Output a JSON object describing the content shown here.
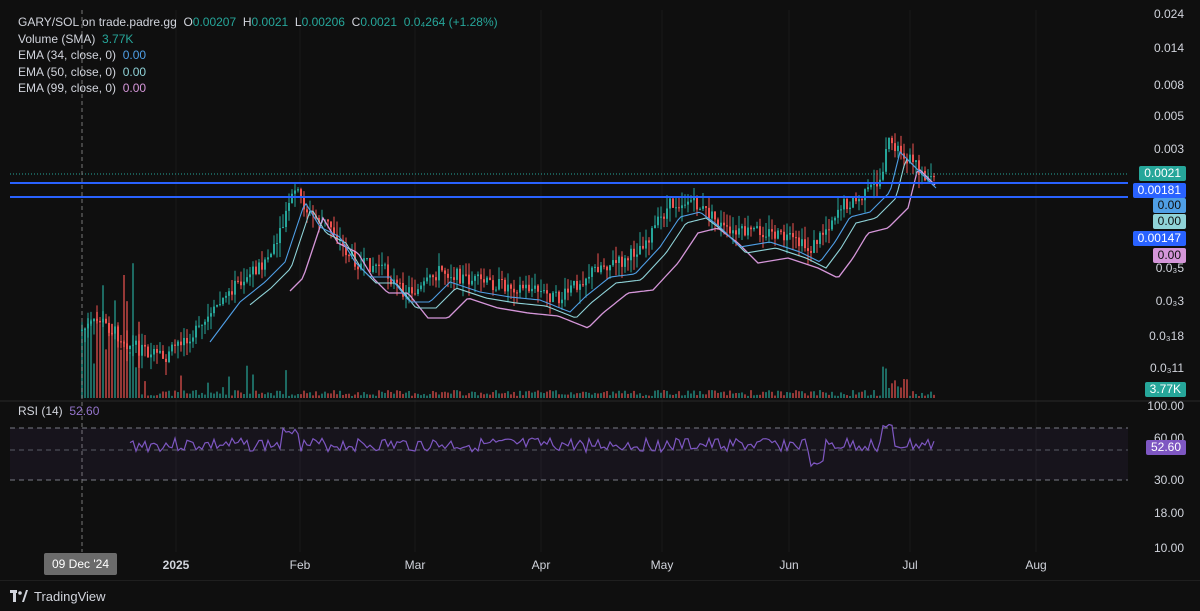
{
  "legend": {
    "symbol": "GARY/SOL on trade.padre.gg",
    "o_label": "O",
    "o_value": "0.00207",
    "h_label": "H",
    "h_value": "0.0021",
    "l_label": "L",
    "l_value": "0.00206",
    "c_label": "C",
    "c_value": "0.0021",
    "change": "0.0₄264 (+1.28%)",
    "volume_label": "Volume (SMA)",
    "volume_value": "3.77K",
    "ema34_label": "EMA (34, close, 0)",
    "ema34_value": "0.00",
    "ema50_label": "EMA (50, close, 0)",
    "ema50_value": "0.00",
    "ema99_label": "EMA (99, close, 0)",
    "ema99_value": "0.00"
  },
  "rsi": {
    "label": "RSI (14)",
    "value": "52.60"
  },
  "price_axis": [
    "0.024",
    "0.014",
    "0.008",
    "0.005",
    "0.003",
    "0.0₃5",
    "0.0₃3",
    "0.0₃18",
    "0.0₃11"
  ],
  "rsi_axis": [
    "100.00",
    "60.00",
    "30.00",
    "18.00",
    "10.00"
  ],
  "time_axis": [
    "2025",
    "Feb",
    "Mar",
    "Apr",
    "May",
    "Jun",
    "Jul",
    "Aug"
  ],
  "crosshair_date": "09 Dec '24",
  "price_tags": {
    "last": "0.0021",
    "line1": "0.00181",
    "ema34": "0.00",
    "ema50": "0.00",
    "line2": "0.00147",
    "ema99": "0.00",
    "volume": "3.77K",
    "rsi": "52.60"
  },
  "branding": {
    "name": "TradingView"
  },
  "colors": {
    "up": "#26a69a",
    "down": "#ef5350",
    "hline": "#2962ff",
    "ema34": "#4f9fe6",
    "ema50": "#8fd3d8",
    "ema99": "#d596d9",
    "rsi": "#7e57c2"
  }
}
